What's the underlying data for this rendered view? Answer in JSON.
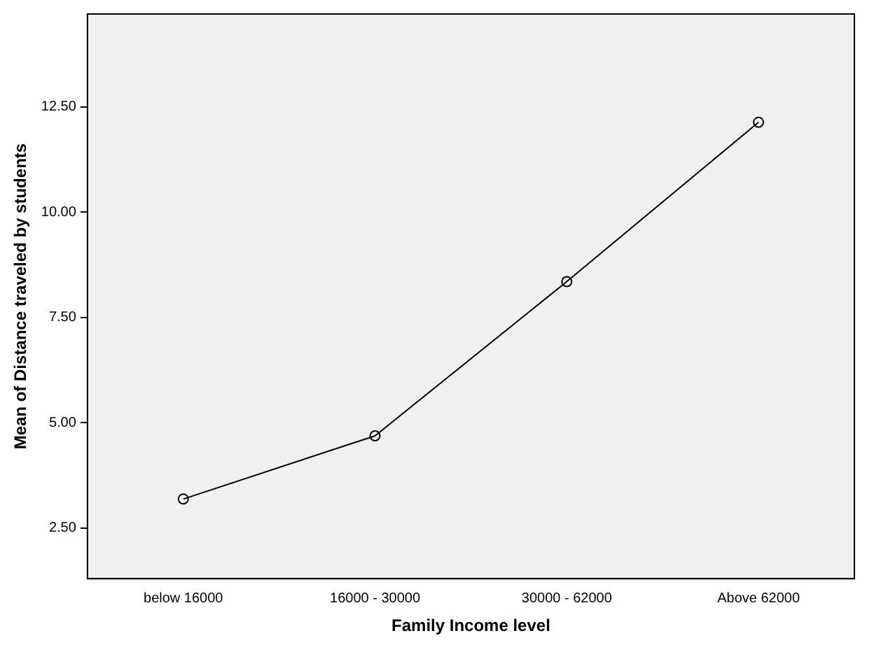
{
  "chart_data": {
    "type": "line",
    "xlabel": "Family Income level",
    "ylabel": "Mean of Distance traveled by students",
    "categories": [
      "below 16000",
      "16000 - 30000",
      "30000 - 62000",
      "Above 62000"
    ],
    "series": [
      {
        "color": "#000000",
        "values": [
          3.19,
          4.69,
          8.35,
          12.13
        ]
      }
    ],
    "ylim": [
      1.3,
      14.7
    ],
    "yticks": [
      {
        "value": 2.5,
        "label": "2.50"
      },
      {
        "value": 5,
        "label": "5.00"
      },
      {
        "value": 7.5,
        "label": "7.50"
      },
      {
        "value": 10,
        "label": "10.00"
      },
      {
        "value": 12.5,
        "label": "12.50"
      }
    ],
    "grid": false,
    "legend": false,
    "marker": "circle",
    "line_style": "solid"
  }
}
